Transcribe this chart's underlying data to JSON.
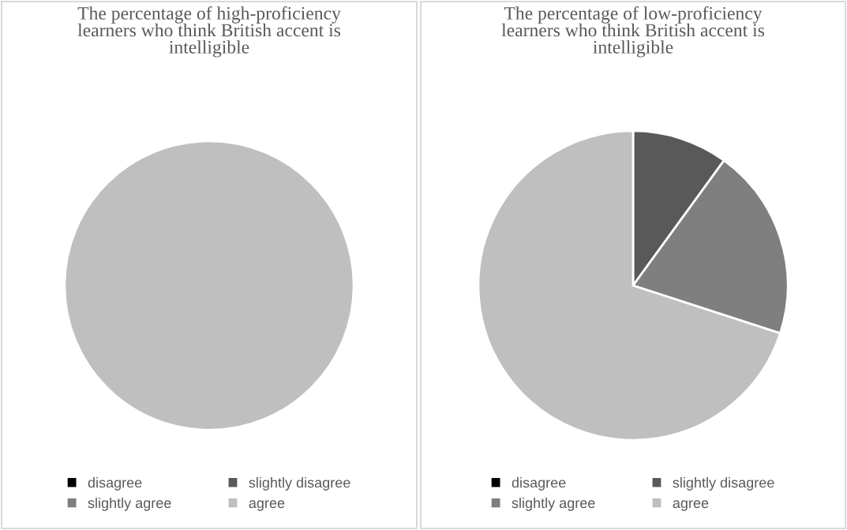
{
  "chart_data": [
    {
      "type": "pie",
      "title": "The percentage of high-proficiency learners who think British accent is intelligible",
      "categories": [
        "disagree",
        "slightly disagree",
        "slightly agree",
        "agree"
      ],
      "values": [
        0,
        0,
        0,
        100
      ],
      "colors": [
        "#000000",
        "#595959",
        "#7f7f7f",
        "#bfbfbf"
      ],
      "legend": "bottom"
    },
    {
      "type": "pie",
      "title": "The percentage of low-proficiency learners who think British accent is intelligible",
      "categories": [
        "disagree",
        "slightly disagree",
        "slightly agree",
        "agree"
      ],
      "values": [
        0,
        10,
        20,
        70
      ],
      "colors": [
        "#000000",
        "#595959",
        "#7f7f7f",
        "#bfbfbf"
      ],
      "legend": "bottom"
    }
  ]
}
